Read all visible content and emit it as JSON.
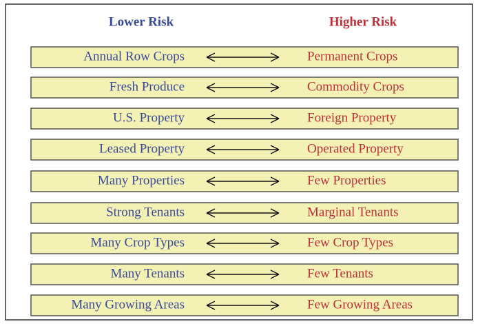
{
  "header": {
    "lower": "Lower Risk",
    "higher": "Higher Risk"
  },
  "rows": [
    {
      "lower": "Annual Row Crops",
      "higher": "Permanent Crops"
    },
    {
      "lower": "Fresh Produce",
      "higher": "Commodity Crops"
    },
    {
      "lower": "U.S. Property",
      "higher": "Foreign Property"
    },
    {
      "lower": "Leased Property",
      "higher": "Operated Property"
    },
    {
      "lower": "Many Properties",
      "higher": "Few Properties"
    },
    {
      "lower": "Strong Tenants",
      "higher": "Marginal Tenants"
    },
    {
      "lower": "Many Crop Types",
      "higher": "Few Crop Types"
    },
    {
      "lower": "Many Tenants",
      "higher": "Few Tenants"
    },
    {
      "lower": "Many Growing Areas",
      "higher": "Few Growing Areas"
    }
  ]
}
